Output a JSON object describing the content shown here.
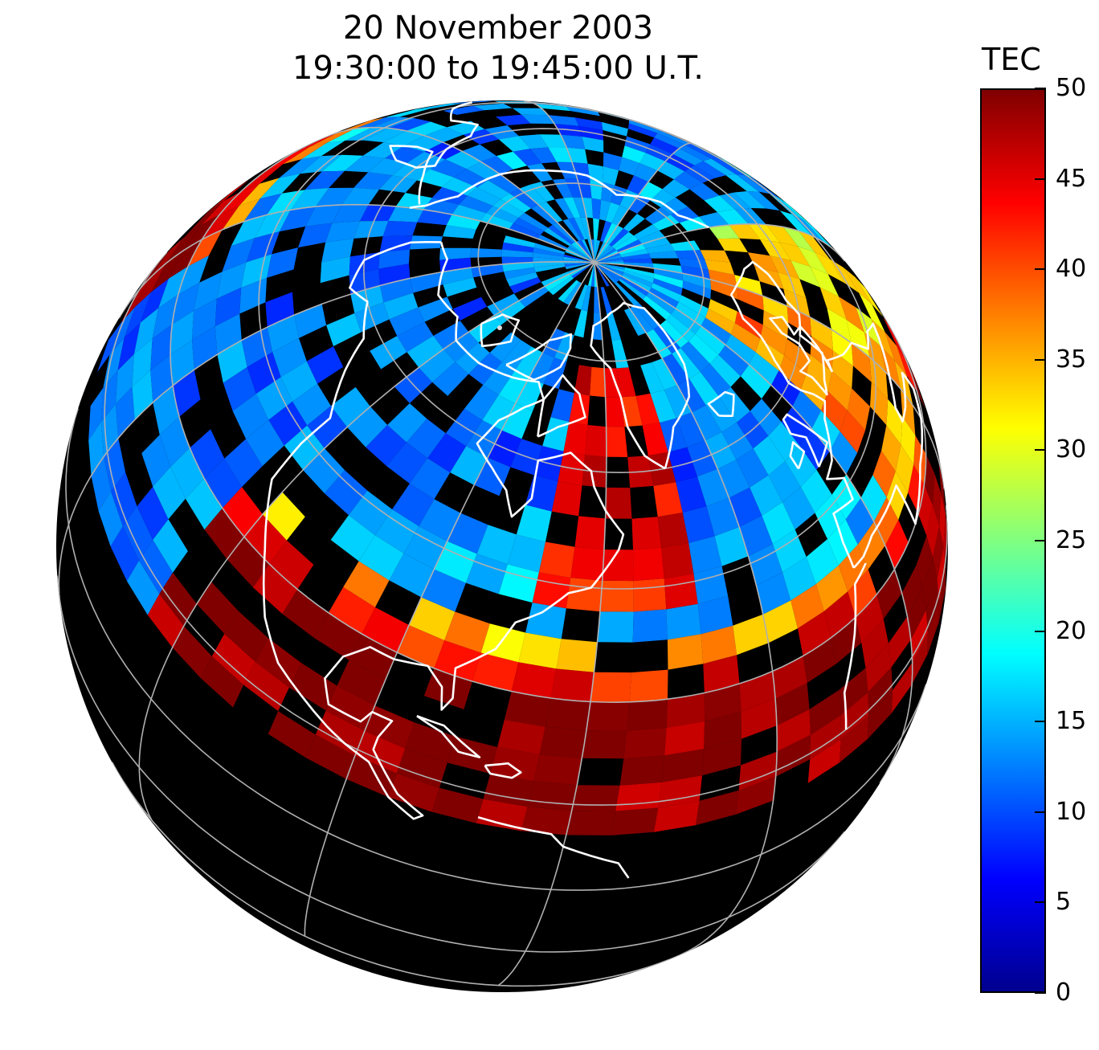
{
  "title": {
    "line1": "20 November 2003",
    "line2": "19:30:00 to 19:45:00 U.T."
  },
  "colorbar": {
    "label": "TEC",
    "min": 0,
    "max": 50,
    "ticks": [
      "0",
      "5",
      "10",
      "15",
      "20",
      "25",
      "30",
      "35",
      "40",
      "45",
      "50"
    ],
    "colormap": "jet",
    "colors": [
      "#00008f",
      "#0000ff",
      "#0080ff",
      "#00ffff",
      "#80ff80",
      "#ffff00",
      "#ff8000",
      "#ff0000",
      "#800000"
    ]
  },
  "map": {
    "projection": "orthographic",
    "center": "North America / North Pole",
    "background_color": "#000000",
    "coastline_color": "#ffffff",
    "graticule_color": "#b0b0b0",
    "no_data_color": "#000000"
  }
}
